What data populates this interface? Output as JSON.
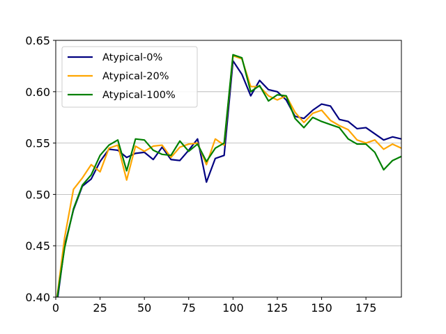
{
  "chart_data": {
    "type": "line",
    "title": "",
    "xlabel": "",
    "ylabel": "",
    "xlim": [
      0,
      195
    ],
    "ylim": [
      0.4,
      0.65
    ],
    "xticks": [
      0,
      25,
      50,
      75,
      100,
      125,
      150,
      175
    ],
    "yticks": [
      0.4,
      0.45,
      0.5,
      0.55,
      0.6,
      0.65
    ],
    "xtick_labels": [
      "0",
      "25",
      "50",
      "75",
      "100",
      "125",
      "150",
      "175"
    ],
    "ytick_labels": [
      "0.40",
      "0.45",
      "0.50",
      "0.55",
      "0.60",
      "0.65"
    ],
    "grid": "horizontal",
    "legend_position": "upper-left",
    "x": [
      0,
      5,
      10,
      15,
      20,
      25,
      30,
      35,
      40,
      45,
      50,
      55,
      60,
      65,
      70,
      75,
      80,
      85,
      90,
      95,
      100,
      105,
      110,
      115,
      120,
      125,
      130,
      135,
      140,
      145,
      150,
      155,
      160,
      165,
      170,
      175,
      180,
      185,
      190,
      195
    ],
    "series": [
      {
        "name": "Atypical-0%",
        "color": "#000080",
        "values": [
          0.385,
          0.45,
          0.485,
          0.508,
          0.515,
          0.532,
          0.544,
          0.543,
          0.536,
          0.54,
          0.541,
          0.534,
          0.546,
          0.534,
          0.533,
          0.543,
          0.554,
          0.512,
          0.535,
          0.538,
          0.63,
          0.617,
          0.596,
          0.611,
          0.602,
          0.6,
          0.592,
          0.576,
          0.574,
          0.582,
          0.588,
          0.586,
          0.573,
          0.571,
          0.564,
          0.565,
          0.559,
          0.553,
          0.556,
          0.554
        ]
      },
      {
        "name": "Atypical-20%",
        "color": "#FFA500",
        "values": [
          0.39,
          0.458,
          0.505,
          0.516,
          0.529,
          0.522,
          0.545,
          0.548,
          0.514,
          0.547,
          0.542,
          0.547,
          0.548,
          0.536,
          0.546,
          0.549,
          0.55,
          0.529,
          0.554,
          0.548,
          0.635,
          0.632,
          0.605,
          0.605,
          0.596,
          0.592,
          0.596,
          0.58,
          0.57,
          0.579,
          0.582,
          0.572,
          0.567,
          0.563,
          0.553,
          0.55,
          0.553,
          0.544,
          0.549,
          0.545
        ]
      },
      {
        "name": "Atypical-100%",
        "color": "#008000",
        "values": [
          0.39,
          0.448,
          0.486,
          0.509,
          0.519,
          0.538,
          0.548,
          0.553,
          0.523,
          0.554,
          0.553,
          0.543,
          0.539,
          0.538,
          0.552,
          0.542,
          0.549,
          0.532,
          0.545,
          0.55,
          0.636,
          0.633,
          0.6,
          0.606,
          0.591,
          0.597,
          0.596,
          0.574,
          0.565,
          0.575,
          0.571,
          0.568,
          0.565,
          0.554,
          0.549,
          0.549,
          0.541,
          0.524,
          0.533,
          0.537
        ]
      }
    ]
  }
}
